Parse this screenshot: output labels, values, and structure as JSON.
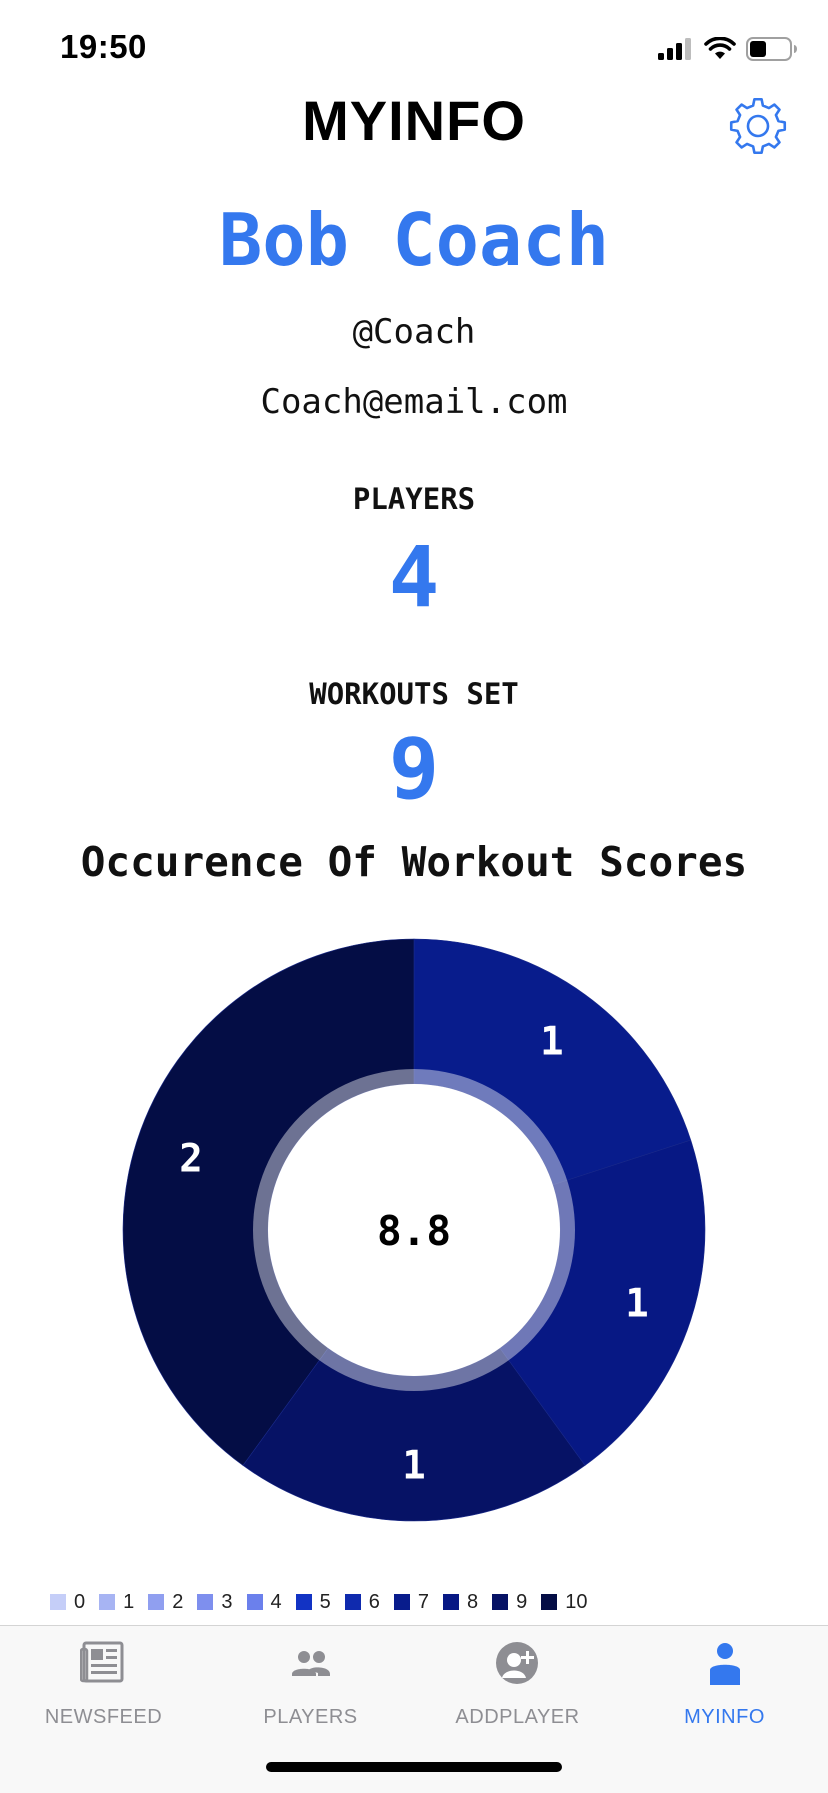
{
  "status_bar": {
    "time": "19:50"
  },
  "header": {
    "title": "MYINFO"
  },
  "profile": {
    "name": "Bob Coach",
    "handle": "@Coach",
    "email": "Coach@email.com"
  },
  "stats": {
    "players_label": "PLAYERS",
    "players_value": "4",
    "workouts_label": "WORKOUTS SET",
    "workouts_value": "9"
  },
  "chart_data": {
    "type": "pie",
    "title": "Occurence Of Workout Scores",
    "center_value": "8.8",
    "slices": [
      {
        "score": 7,
        "value": 1,
        "label": "1",
        "color": "#081c8c"
      },
      {
        "score": 8,
        "value": 1,
        "label": "1",
        "color": "#071884"
      },
      {
        "score": 9,
        "value": 1,
        "label": "1",
        "color": "#061265"
      },
      {
        "score": 10,
        "value": 2,
        "label": "2",
        "color": "#040d45"
      }
    ],
    "legend": [
      {
        "label": "0",
        "color": "#c5cef8"
      },
      {
        "label": "1",
        "color": "#a7b4f3"
      },
      {
        "label": "2",
        "color": "#909ff0"
      },
      {
        "label": "3",
        "color": "#7e8fee"
      },
      {
        "label": "4",
        "color": "#6b80ec"
      },
      {
        "label": "5",
        "color": "#1233c4"
      },
      {
        "label": "6",
        "color": "#0f2aae"
      },
      {
        "label": "7",
        "color": "#081c8c"
      },
      {
        "label": "8",
        "color": "#071884"
      },
      {
        "label": "9",
        "color": "#061265"
      },
      {
        "label": "10",
        "color": "#040d45"
      }
    ]
  },
  "tab_bar": {
    "tabs": [
      {
        "label": "NEWSFEED",
        "icon": "newspaper-icon",
        "active": false
      },
      {
        "label": "PLAYERS",
        "icon": "people-icon",
        "active": false
      },
      {
        "label": "ADDPLAYER",
        "icon": "add-person-icon",
        "active": false
      },
      {
        "label": "MYINFO",
        "icon": "person-icon",
        "active": true
      }
    ]
  },
  "colors": {
    "accent": "#3478ee",
    "inactive": "#8e8e93"
  }
}
